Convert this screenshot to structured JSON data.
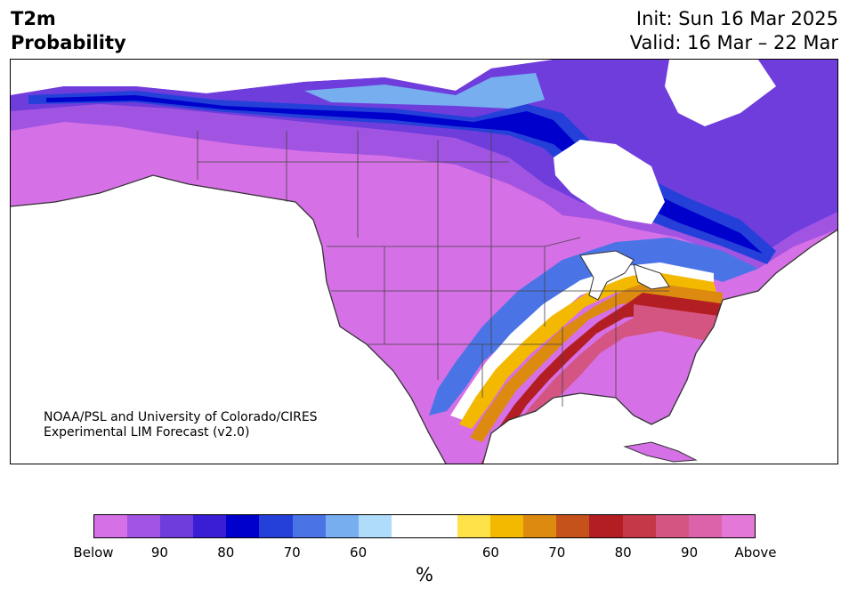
{
  "title": {
    "line1": "T2m",
    "line2": "Probability"
  },
  "init_label": "Init: Sun 16 Mar 2025",
  "valid_label": "Valid: 16 Mar – 22 Mar",
  "credit": {
    "line1": "NOAA/PSL and University of Colorado/CIRES",
    "line2": "Experimental LIM Forecast (v2.0)"
  },
  "colorbar": {
    "colors": [
      "#d670e6",
      "#a154e2",
      "#6f3ddc",
      "#3a1ed6",
      "#0000cc",
      "#2440d8",
      "#4a74e6",
      "#76aef0",
      "#aedcfa",
      "#ffffff",
      "#ffffff",
      "#ffe24a",
      "#f3b800",
      "#dc8a10",
      "#c4521a",
      "#b21e22",
      "#c43848",
      "#d45482",
      "#dc62aa",
      "#e478d8"
    ],
    "ticks": [
      "Below",
      "90",
      "80",
      "70",
      "60",
      "60",
      "70",
      "80",
      "90",
      "Above"
    ],
    "unit": "%"
  }
}
